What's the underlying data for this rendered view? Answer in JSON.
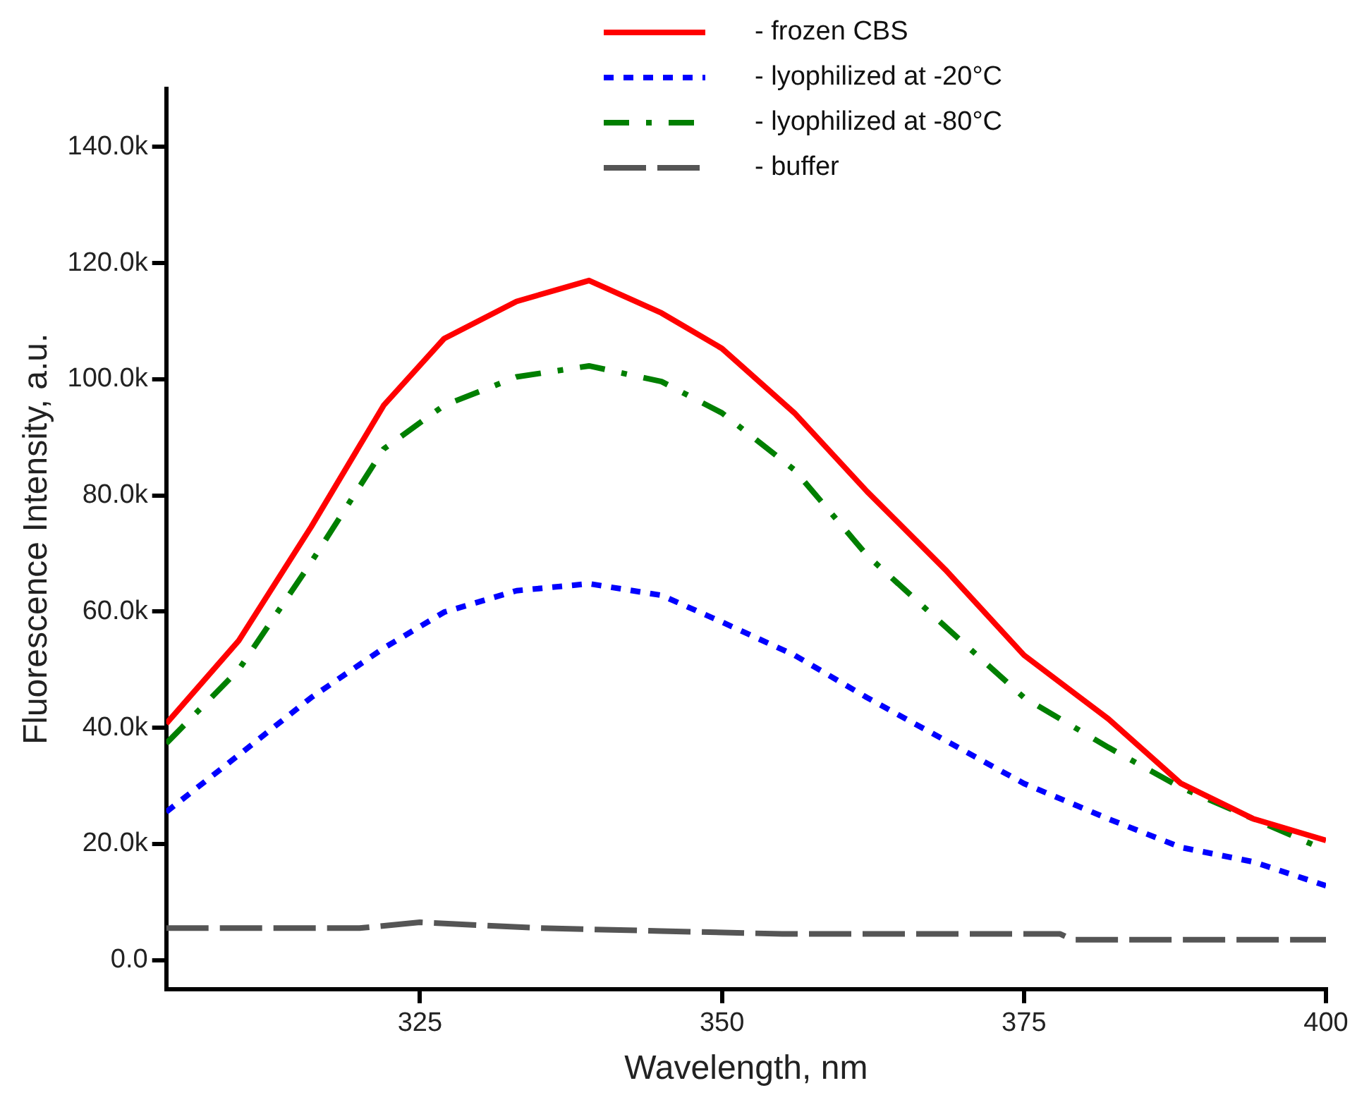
{
  "chart_data": {
    "type": "line",
    "xlabel": "Wavelength, nm",
    "ylabel": "Fluorescence Intensity, a.u.",
    "xlim": [
      304,
      400
    ],
    "xticks": [
      325,
      350,
      375,
      400
    ],
    "ylim": [
      -5000,
      150000
    ],
    "yticks": [
      {
        "value": 0,
        "label": "0.0"
      },
      {
        "value": 20000,
        "label": "20.0k"
      },
      {
        "value": 40000,
        "label": "40.0k"
      },
      {
        "value": 60000,
        "label": "60.0k"
      },
      {
        "value": 80000,
        "label": "80.0k"
      },
      {
        "value": 100000,
        "label": "100.0k"
      },
      {
        "value": 120000,
        "label": "120.0k"
      },
      {
        "value": 140000,
        "label": "140.0k"
      }
    ],
    "grid": false,
    "legend": "top",
    "marker": "none",
    "series": [
      {
        "name": "- frozen CBS",
        "color": "#ff0000",
        "line_style": "solid",
        "x": [
          304,
          310,
          316,
          322,
          327,
          333,
          339,
          345,
          350,
          356,
          362,
          368.5,
          375,
          382,
          388,
          394,
          400
        ],
        "values": [
          40700,
          55000,
          74600,
          95500,
          107000,
          113400,
          117000,
          111400,
          105300,
          94200,
          80700,
          67200,
          52500,
          41500,
          30400,
          24300,
          20600
        ]
      },
      {
        "name": "- lyophilized at -20°C",
        "color": "#0000ff",
        "line_style": "dotted",
        "x": [
          304,
          310,
          316,
          322,
          327,
          333,
          339,
          345,
          350,
          356,
          362,
          368.5,
          375,
          382,
          388,
          394,
          400
        ],
        "values": [
          25500,
          35300,
          45200,
          53700,
          59900,
          63600,
          64800,
          62800,
          58200,
          52500,
          45200,
          37800,
          30400,
          24300,
          19400,
          16900,
          12800
        ]
      },
      {
        "name": "- lyophilized at -80°C",
        "color": "#007f00",
        "line_style": "dashdot",
        "x": [
          304,
          310,
          316,
          322,
          327,
          333,
          339,
          345,
          350,
          356,
          362,
          368.5,
          375,
          382,
          388,
          394,
          400
        ],
        "values": [
          37300,
          50000,
          68500,
          88000,
          95500,
          100400,
          102300,
          99600,
          94200,
          84400,
          69700,
          57400,
          45200,
          36600,
          29700,
          24300,
          18900
        ]
      },
      {
        "name": "- buffer",
        "color": "#555555",
        "line_style": "dashed",
        "x": [
          304,
          320,
          325,
          335,
          345,
          355,
          365,
          378,
          379,
          400
        ],
        "values": [
          5500,
          5500,
          6500,
          5500,
          5000,
          4500,
          4500,
          4500,
          3500,
          3500
        ]
      }
    ]
  }
}
